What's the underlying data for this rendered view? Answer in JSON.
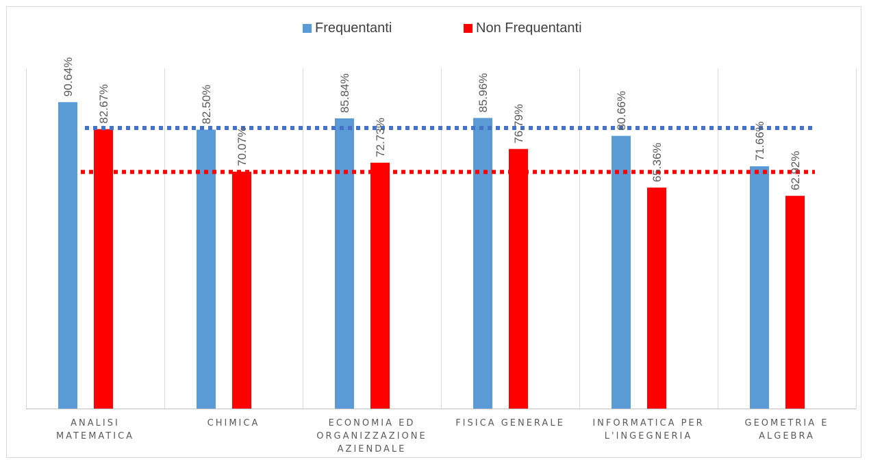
{
  "chart_data": {
    "type": "bar",
    "categories": [
      [
        "ANALISI",
        "MATEMATICA"
      ],
      [
        "CHIMICA"
      ],
      [
        "ECONOMIA ED",
        "ORGANIZZAZIONE",
        "AZIENDALE"
      ],
      [
        "FISICA GENERALE"
      ],
      [
        "INFORMATICA PER",
        "L'INGEGNERIA"
      ],
      [
        "GEOMETRIA E",
        "ALGEBRA"
      ]
    ],
    "series": [
      {
        "name": "Frequentanti",
        "color": "#5b9bd5",
        "values": [
          90.64,
          82.5,
          85.84,
          85.96,
          80.66,
          71.66
        ],
        "labels": [
          "90.64%",
          "82.50%",
          "85.84%",
          "85.96%",
          "80.66%",
          "71.66%"
        ],
        "average_line": 83.0
      },
      {
        "name": "Non Frequentanti",
        "color": "#ff0000",
        "values": [
          82.67,
          70.07,
          72.73,
          76.79,
          65.36,
          62.92
        ],
        "labels": [
          "82.67%",
          "70.07%",
          "72.73%",
          "76.79%",
          "65.36%",
          "62.92%"
        ],
        "average_line": 70.0
      }
    ],
    "ylim": [
      0,
      100
    ],
    "grid": "vertical category separators",
    "legend": "top-center",
    "xlabel": "",
    "ylabel": ""
  }
}
